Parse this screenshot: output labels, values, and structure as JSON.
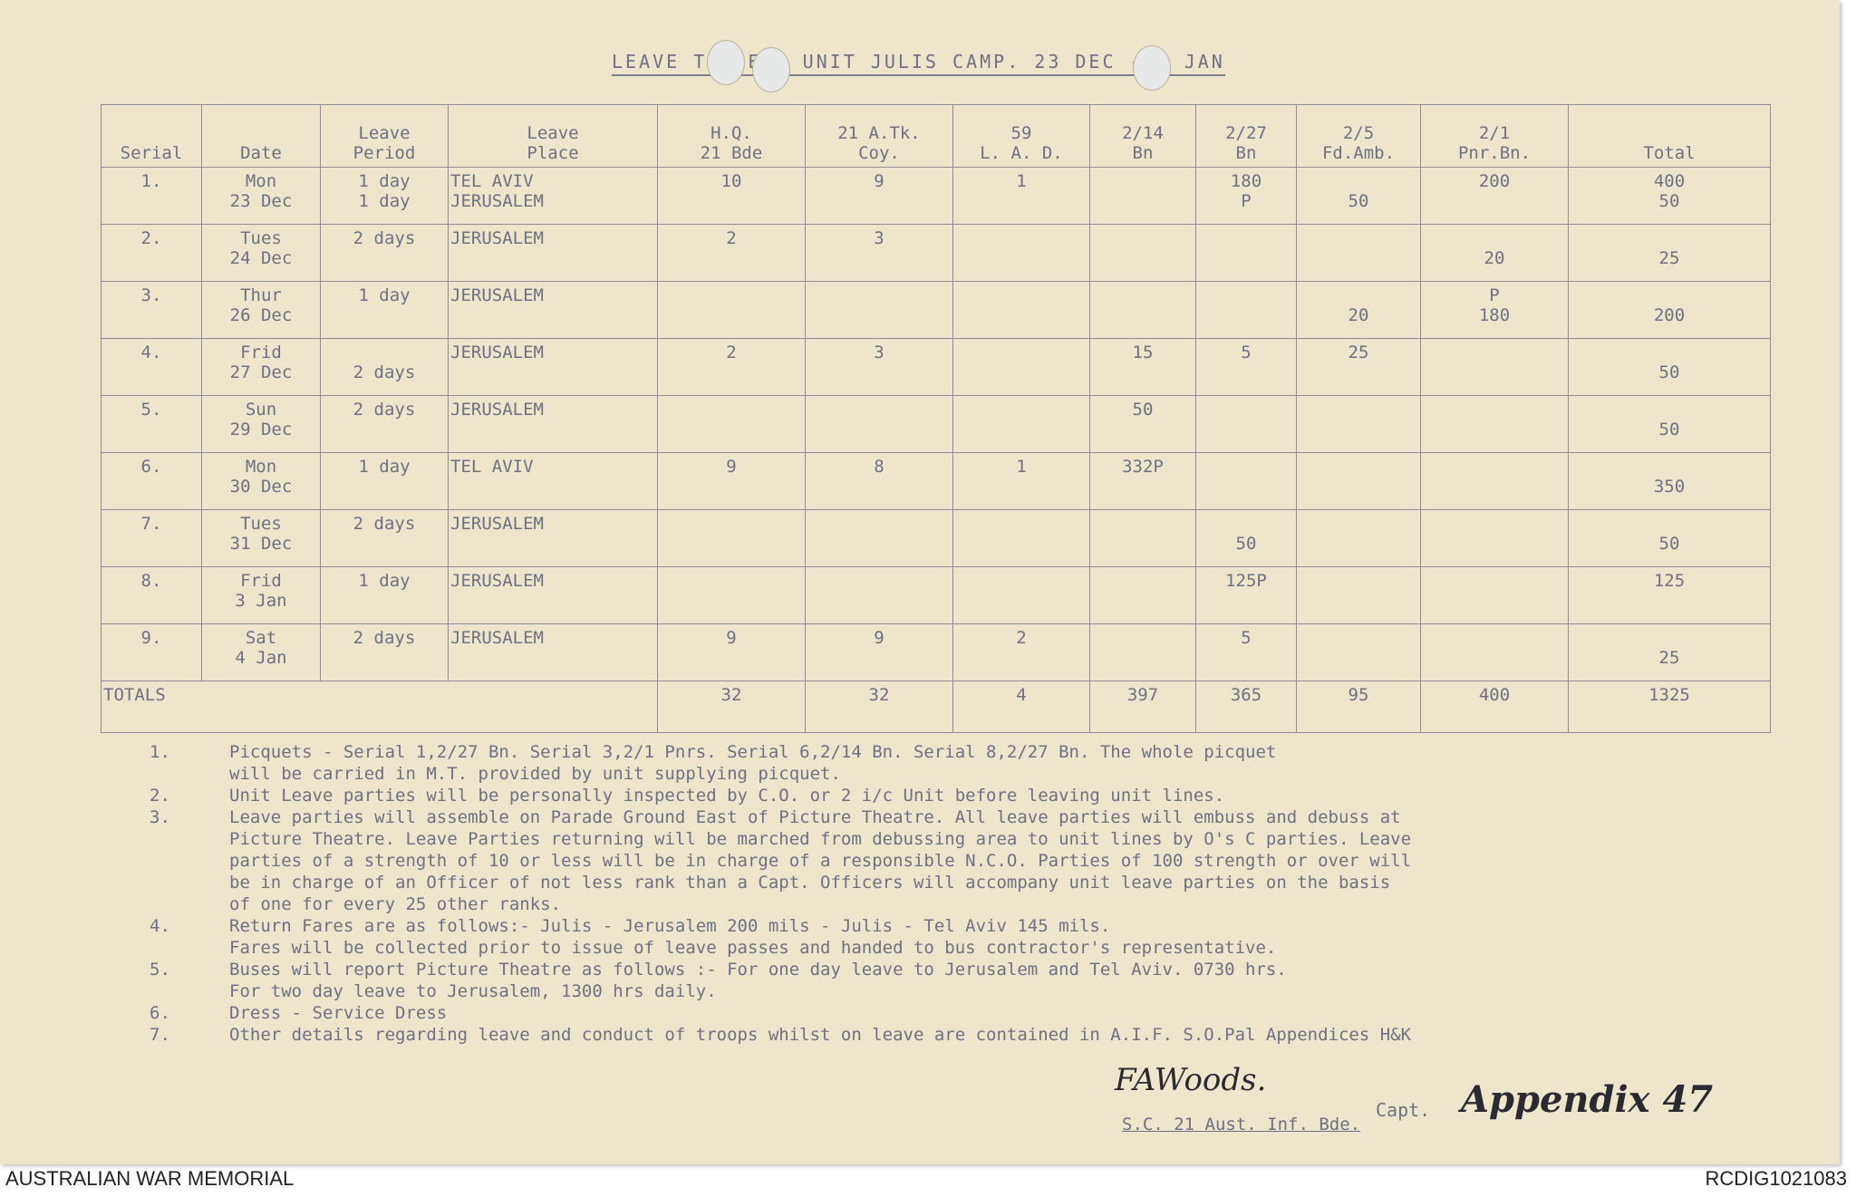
{
  "title": "LEAVE TABLE - UNIT JULIS CAMP. 23 DEC - 5 JAN",
  "headers": [
    "Serial",
    "Date",
    "Leave\nPeriod",
    "Leave\nPlace",
    "H.Q.\n21 Bde",
    "21 A.Tk.\nCoy.",
    "59\nL. A. D.",
    "2/14\nBn",
    "2/27\nBn",
    "2/5\nFd.Amb.",
    "2/1\nPnr.Bn.",
    "Total"
  ],
  "rows": [
    [
      "1.",
      "Mon\n23 Dec",
      "1 day\n1 day",
      "TEL AVIV\nJERUSALEM",
      "10",
      "9",
      "1",
      "",
      "180\nP",
      "\n50",
      "200",
      "400\n50"
    ],
    [
      "2.",
      "Tues\n24 Dec",
      "2 days",
      "JERUSALEM",
      "2",
      "3",
      "",
      "",
      "",
      "",
      "\n20",
      "\n25"
    ],
    [
      "3.",
      "Thur\n26 Dec",
      "1 day",
      "JERUSALEM",
      "",
      "",
      "",
      "",
      "",
      "\n20",
      "P\n180",
      "\n200"
    ],
    [
      "4.",
      "Frid\n27 Dec",
      "\n2 days",
      "JERUSALEM",
      "2",
      "3",
      "",
      "15",
      "5",
      "25",
      "",
      "\n50"
    ],
    [
      "5.",
      "Sun\n29 Dec",
      "2 days",
      "JERUSALEM",
      "",
      "",
      "",
      "50",
      "",
      "",
      "",
      "\n50"
    ],
    [
      "6.",
      "Mon\n30 Dec",
      "1 day",
      "TEL AVIV",
      "9",
      "8",
      "1",
      "332P",
      "",
      "",
      "",
      "\n350"
    ],
    [
      "7.",
      "Tues\n31 Dec",
      "2 days",
      "JERUSALEM",
      "",
      "",
      "",
      "",
      "\n50",
      "",
      "",
      "\n50"
    ],
    [
      "8.",
      "Frid\n3 Jan",
      "1 day",
      "JERUSALEM",
      "",
      "",
      "",
      "",
      "125P",
      "",
      "",
      "125"
    ],
    [
      "9.",
      "Sat\n4 Jan",
      "2 days",
      "JERUSALEM",
      "9",
      "9",
      "2",
      "",
      "5",
      "",
      "",
      "\n25"
    ]
  ],
  "totals": {
    "label": "TOTALS",
    "values": [
      "32",
      "32",
      "4",
      "397",
      "365",
      "95",
      "400",
      "1325"
    ]
  },
  "notes": [
    {
      "n": "1.",
      "text": "Picquets  - Serial 1,2/27 Bn.  Serial 3,2/1 Pnrs.  Serial 6,2/14 Bn.  Serial 8,2/27 Bn.  The whole picquet\nwill be carried in M.T. provided by unit supplying picquet."
    },
    {
      "n": "2.",
      "text": "Unit Leave parties will be personally inspected by C.O. or 2 i/c Unit before leaving unit lines."
    },
    {
      "n": "3.",
      "text": "Leave parties will assemble on Parade Ground East of Picture Theatre.  All leave parties will embuss and debuss at\nPicture Theatre. Leave Parties returning will be marched from debussing area to unit lines by O's C parties. Leave\nparties of a strength of 10 or less will be in charge of a responsible N.C.O. Parties of 100 strength or over will\nbe in charge of an Officer of not less rank than a Capt. Officers will accompany unit leave parties on the basis\nof one for every 25 other ranks."
    },
    {
      "n": "4.",
      "text": "Return Fares are as follows:-   Julis - Jerusalem  200 mils  -  Julis - Tel Aviv  145 mils.\n   Fares will be collected prior to issue of leave passes and handed to bus contractor's representative."
    },
    {
      "n": "5.",
      "text": "Buses will report Picture Theatre as follows :- For one day leave to Jerusalem and Tel Aviv.  0730 hrs.\n                                                      For two day leave to Jerusalem, 1300 hrs daily."
    },
    {
      "n": "6.",
      "text": "Dress - Service Dress"
    },
    {
      "n": "7.",
      "text": "Other details regarding leave and conduct of troops whilst on leave are contained in A.I.F. S.O.Pal Appendices H&K"
    }
  ],
  "signature": {
    "name": "FAWoods.",
    "rank": "Capt.",
    "appointment": "S.C. 21 Aust. Inf. Bde.",
    "annotation": "Appendix 47"
  },
  "footer": {
    "left": "AUSTRALIAN WAR MEMORIAL",
    "right": "RCDIG1021083"
  }
}
